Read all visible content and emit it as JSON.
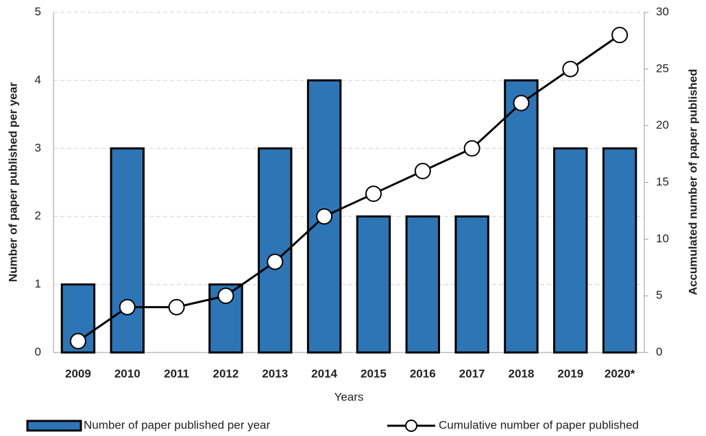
{
  "chart_data": {
    "type": "bar",
    "x_label": "Years",
    "y_label": "Number of paper published per year",
    "y2_label": "Accumulated number of paper published",
    "categories": [
      "2009",
      "2010",
      "2011",
      "2012",
      "2013",
      "2014",
      "2015",
      "2016",
      "2017",
      "2018",
      "2019",
      "2020*"
    ],
    "series": [
      {
        "name": "Number of paper published per year",
        "type": "bar",
        "color": "#2e75b6",
        "values": [
          1,
          3,
          0,
          1,
          3,
          4,
          2,
          2,
          2,
          4,
          3,
          3
        ]
      },
      {
        "name": "Cumulative number of paper published",
        "type": "line",
        "axis": "y2",
        "color": "#000000",
        "values": [
          1,
          4,
          4,
          5,
          8,
          12,
          14,
          16,
          18,
          22,
          25,
          28
        ]
      }
    ],
    "ylim": [
      0,
      5
    ],
    "yticks": [
      0,
      1,
      2,
      3,
      4,
      5
    ],
    "y2lim": [
      0,
      30
    ],
    "y2ticks": [
      0,
      5,
      10,
      15,
      20,
      25,
      30
    ],
    "grid": true,
    "legend": "bottom"
  }
}
